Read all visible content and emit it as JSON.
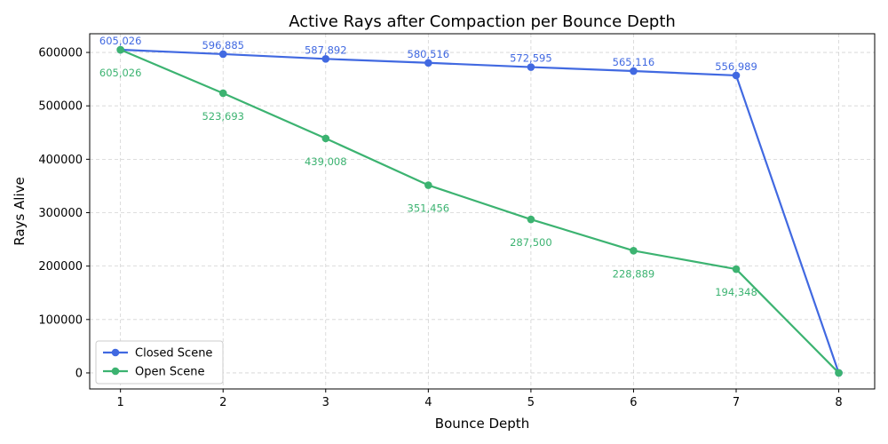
{
  "chart_data": {
    "type": "line",
    "title": "Active Rays after Compaction per Bounce Depth",
    "xlabel": "Bounce Depth",
    "ylabel": "Rays Alive",
    "x": [
      1,
      2,
      3,
      4,
      5,
      6,
      7,
      8
    ],
    "x_ticks": [
      "1",
      "2",
      "3",
      "4",
      "5",
      "6",
      "7",
      "8"
    ],
    "y_ticks": [
      "0",
      "100000",
      "200000",
      "300000",
      "400000",
      "500000",
      "600000"
    ],
    "xlim": [
      0.7,
      8.35
    ],
    "ylim": [
      -30000,
      635000
    ],
    "grid": true,
    "legend_position": "lower-left",
    "series": [
      {
        "name": "Closed Scene",
        "color": "#4169e1",
        "values": [
          605026,
          596885,
          587892,
          580516,
          572595,
          565116,
          556989,
          0
        ],
        "labels": [
          "605,026",
          "596,885",
          "587,892",
          "580,516",
          "572,595",
          "565,116",
          "556,989",
          ""
        ],
        "label_position": "above"
      },
      {
        "name": "Open Scene",
        "color": "#3cb371",
        "values": [
          605026,
          523693,
          439008,
          351456,
          287500,
          228889,
          194348,
          0
        ],
        "labels": [
          "605,026",
          "523,693",
          "439,008",
          "351,456",
          "287,500",
          "228,889",
          "194,348",
          ""
        ],
        "label_position": "below"
      }
    ]
  }
}
